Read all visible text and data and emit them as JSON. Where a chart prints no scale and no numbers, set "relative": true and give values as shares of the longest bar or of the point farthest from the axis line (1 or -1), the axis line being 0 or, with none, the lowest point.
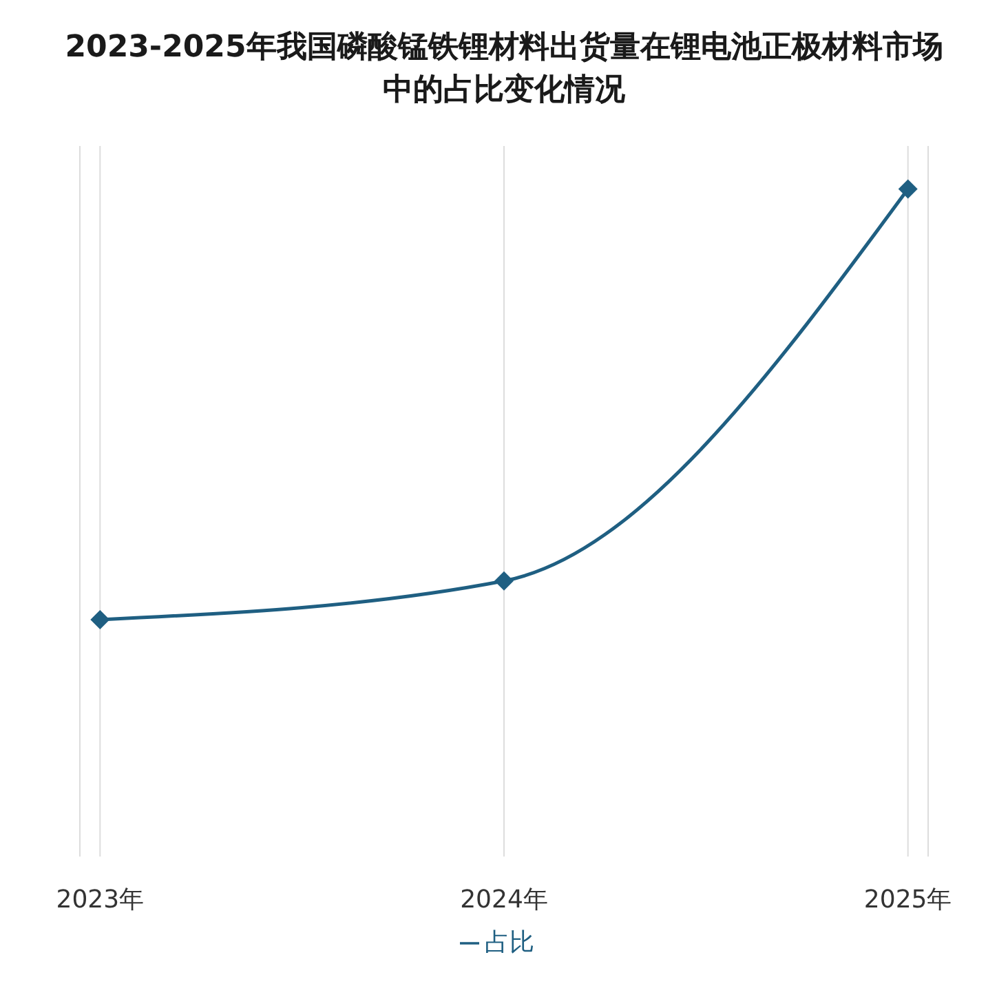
{
  "chart_data": {
    "type": "line",
    "title": "2023-2025年我国磷酸锰铁锂材料出货量在锂电池正极材料市场中的占比变化情况",
    "categories": [
      "2023年",
      "2024年",
      "2025年"
    ],
    "series": [
      {
        "name": "占比",
        "color": "#1f5f82",
        "values": [
          0,
          0.09,
          1
        ]
      }
    ],
    "relative": true,
    "legend": "bottom",
    "marker": "diamond",
    "grid": "x"
  }
}
